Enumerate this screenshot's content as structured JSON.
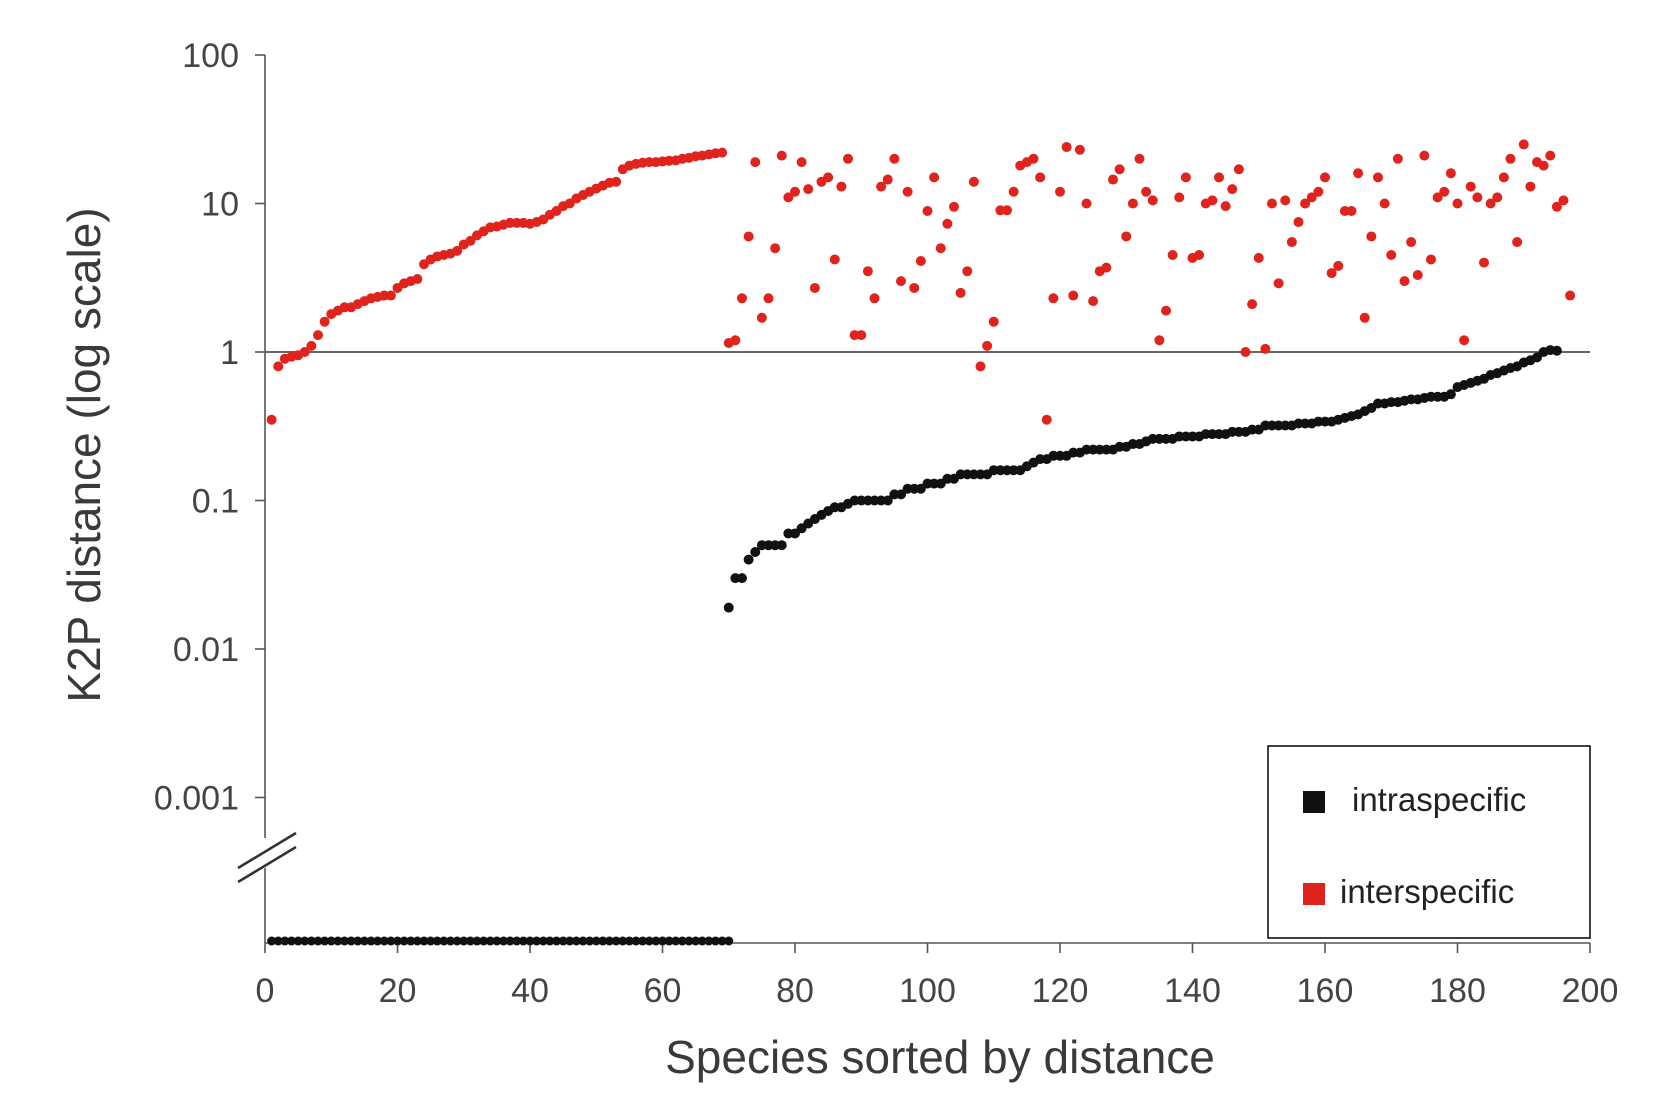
{
  "chart_data": {
    "type": "scatter",
    "title": "",
    "xlabel": "Species sorted by distance",
    "ylabel": "K2P distance (log scale)",
    "xlim": [
      0,
      200
    ],
    "ylim": [
      0.001,
      100
    ],
    "y_scale": "log",
    "y_axis_break": true,
    "x_ticks": [
      "0",
      "20",
      "40",
      "60",
      "80",
      "100",
      "120",
      "140",
      "160",
      "180",
      "200"
    ],
    "y_ticks": [
      "100",
      "10",
      "1",
      "0.1",
      "0.01",
      "0.001"
    ],
    "reference_line_y": 1,
    "grid": false,
    "legend_position": "bottom-right",
    "series": [
      {
        "name": "intraspecific",
        "color": "#111111",
        "zero_points_x_range": [
          1,
          70
        ],
        "points": [
          [
            70,
            0.019
          ],
          [
            71,
            0.03
          ],
          [
            72,
            0.03
          ],
          [
            73,
            0.04
          ],
          [
            74,
            0.045
          ],
          [
            75,
            0.05
          ],
          [
            76,
            0.05
          ],
          [
            77,
            0.05
          ],
          [
            78,
            0.05
          ],
          [
            79,
            0.06
          ],
          [
            80,
            0.06
          ],
          [
            81,
            0.065
          ],
          [
            82,
            0.07
          ],
          [
            83,
            0.075
          ],
          [
            84,
            0.08
          ],
          [
            85,
            0.085
          ],
          [
            86,
            0.09
          ],
          [
            87,
            0.09
          ],
          [
            88,
            0.095
          ],
          [
            89,
            0.1
          ],
          [
            90,
            0.1
          ],
          [
            91,
            0.1
          ],
          [
            92,
            0.1
          ],
          [
            93,
            0.1
          ],
          [
            94,
            0.1
          ],
          [
            95,
            0.11
          ],
          [
            96,
            0.11
          ],
          [
            97,
            0.12
          ],
          [
            98,
            0.12
          ],
          [
            99,
            0.12
          ],
          [
            100,
            0.13
          ],
          [
            101,
            0.13
          ],
          [
            102,
            0.13
          ],
          [
            103,
            0.14
          ],
          [
            104,
            0.14
          ],
          [
            105,
            0.15
          ],
          [
            106,
            0.15
          ],
          [
            107,
            0.15
          ],
          [
            108,
            0.15
          ],
          [
            109,
            0.15
          ],
          [
            110,
            0.16
          ],
          [
            111,
            0.16
          ],
          [
            112,
            0.16
          ],
          [
            113,
            0.16
          ],
          [
            114,
            0.16
          ],
          [
            115,
            0.17
          ],
          [
            116,
            0.18
          ],
          [
            117,
            0.19
          ],
          [
            118,
            0.19
          ],
          [
            119,
            0.2
          ],
          [
            120,
            0.2
          ],
          [
            121,
            0.2
          ],
          [
            122,
            0.21
          ],
          [
            123,
            0.21
          ],
          [
            124,
            0.22
          ],
          [
            125,
            0.22
          ],
          [
            126,
            0.22
          ],
          [
            127,
            0.22
          ],
          [
            128,
            0.22
          ],
          [
            129,
            0.23
          ],
          [
            130,
            0.23
          ],
          [
            131,
            0.24
          ],
          [
            132,
            0.24
          ],
          [
            133,
            0.25
          ],
          [
            134,
            0.26
          ],
          [
            135,
            0.26
          ],
          [
            136,
            0.26
          ],
          [
            137,
            0.26
          ],
          [
            138,
            0.27
          ],
          [
            139,
            0.27
          ],
          [
            140,
            0.27
          ],
          [
            141,
            0.27
          ],
          [
            142,
            0.28
          ],
          [
            143,
            0.28
          ],
          [
            144,
            0.28
          ],
          [
            145,
            0.28
          ],
          [
            146,
            0.29
          ],
          [
            147,
            0.29
          ],
          [
            148,
            0.29
          ],
          [
            149,
            0.3
          ],
          [
            150,
            0.3
          ],
          [
            151,
            0.32
          ],
          [
            152,
            0.32
          ],
          [
            153,
            0.32
          ],
          [
            154,
            0.32
          ],
          [
            155,
            0.32
          ],
          [
            156,
            0.33
          ],
          [
            157,
            0.33
          ],
          [
            158,
            0.33
          ],
          [
            159,
            0.34
          ],
          [
            160,
            0.34
          ],
          [
            161,
            0.34
          ],
          [
            162,
            0.35
          ],
          [
            163,
            0.36
          ],
          [
            164,
            0.37
          ],
          [
            165,
            0.38
          ],
          [
            166,
            0.4
          ],
          [
            167,
            0.42
          ],
          [
            168,
            0.45
          ],
          [
            169,
            0.45
          ],
          [
            170,
            0.46
          ],
          [
            171,
            0.46
          ],
          [
            172,
            0.47
          ],
          [
            173,
            0.48
          ],
          [
            174,
            0.48
          ],
          [
            175,
            0.49
          ],
          [
            176,
            0.5
          ],
          [
            177,
            0.5
          ],
          [
            178,
            0.5
          ],
          [
            179,
            0.52
          ],
          [
            180,
            0.58
          ],
          [
            181,
            0.6
          ],
          [
            182,
            0.62
          ],
          [
            183,
            0.64
          ],
          [
            184,
            0.66
          ],
          [
            185,
            0.7
          ],
          [
            186,
            0.72
          ],
          [
            187,
            0.75
          ],
          [
            188,
            0.78
          ],
          [
            189,
            0.8
          ],
          [
            190,
            0.85
          ],
          [
            191,
            0.88
          ],
          [
            192,
            0.92
          ],
          [
            193,
            1.0
          ],
          [
            194,
            1.03
          ],
          [
            195,
            1.02
          ]
        ]
      },
      {
        "name": "interspecific",
        "color": "#e0231c",
        "points": [
          [
            1,
            0.35
          ],
          [
            2,
            0.8
          ],
          [
            3,
            0.9
          ],
          [
            4,
            0.93
          ],
          [
            5,
            0.95
          ],
          [
            6,
            1.0
          ],
          [
            7,
            1.1
          ],
          [
            8,
            1.3
          ],
          [
            9,
            1.6
          ],
          [
            10,
            1.8
          ],
          [
            11,
            1.9
          ],
          [
            12,
            2.0
          ],
          [
            13,
            2.0
          ],
          [
            14,
            2.1
          ],
          [
            15,
            2.2
          ],
          [
            16,
            2.3
          ],
          [
            17,
            2.35
          ],
          [
            18,
            2.4
          ],
          [
            19,
            2.4
          ],
          [
            20,
            2.7
          ],
          [
            21,
            2.9
          ],
          [
            22,
            3.0
          ],
          [
            23,
            3.1
          ],
          [
            24,
            3.9
          ],
          [
            25,
            4.2
          ],
          [
            26,
            4.4
          ],
          [
            27,
            4.5
          ],
          [
            28,
            4.6
          ],
          [
            29,
            4.8
          ],
          [
            30,
            5.3
          ],
          [
            31,
            5.6
          ],
          [
            32,
            6.1
          ],
          [
            33,
            6.5
          ],
          [
            34,
            6.9
          ],
          [
            35,
            7.0
          ],
          [
            36,
            7.2
          ],
          [
            37,
            7.4
          ],
          [
            38,
            7.4
          ],
          [
            39,
            7.4
          ],
          [
            40,
            7.3
          ],
          [
            41,
            7.5
          ],
          [
            42,
            7.8
          ],
          [
            43,
            8.4
          ],
          [
            44,
            8.9
          ],
          [
            45,
            9.6
          ],
          [
            46,
            10.0
          ],
          [
            47,
            10.8
          ],
          [
            48,
            11.4
          ],
          [
            49,
            12.0
          ],
          [
            50,
            12.6
          ],
          [
            51,
            13.2
          ],
          [
            52,
            13.8
          ],
          [
            53,
            14.0
          ],
          [
            54,
            17.0
          ],
          [
            55,
            18.0
          ],
          [
            56,
            18.5
          ],
          [
            57,
            18.8
          ],
          [
            58,
            19.0
          ],
          [
            59,
            19.0
          ],
          [
            60,
            19.2
          ],
          [
            61,
            19.4
          ],
          [
            62,
            19.5
          ],
          [
            63,
            20.0
          ],
          [
            64,
            20.3
          ],
          [
            65,
            20.8
          ],
          [
            66,
            21.0
          ],
          [
            67,
            21.4
          ],
          [
            68,
            21.8
          ],
          [
            69,
            22.0
          ],
          [
            70,
            1.15
          ],
          [
            71,
            1.2
          ],
          [
            72,
            2.3
          ],
          [
            73,
            6.0
          ],
          [
            74,
            19.0
          ],
          [
            75,
            1.7
          ],
          [
            76,
            2.3
          ],
          [
            77,
            5.0
          ],
          [
            78,
            21.0
          ],
          [
            79,
            11.0
          ],
          [
            80,
            12.0
          ],
          [
            81,
            19.0
          ],
          [
            82,
            12.5
          ],
          [
            83,
            2.7
          ],
          [
            84,
            14.0
          ],
          [
            85,
            15.0
          ],
          [
            86,
            4.2
          ],
          [
            87,
            13.0
          ],
          [
            88,
            20.0
          ],
          [
            89,
            1.3
          ],
          [
            90,
            1.3
          ],
          [
            91,
            3.5
          ],
          [
            92,
            2.3
          ],
          [
            93,
            13.0
          ],
          [
            94,
            14.5
          ],
          [
            95,
            20.0
          ],
          [
            96,
            3.0
          ],
          [
            97,
            12.0
          ],
          [
            98,
            2.7
          ],
          [
            99,
            4.1
          ],
          [
            100,
            8.9
          ],
          [
            101,
            15.0
          ],
          [
            102,
            5.0
          ],
          [
            103,
            7.3
          ],
          [
            104,
            9.5
          ],
          [
            105,
            2.5
          ],
          [
            106,
            3.5
          ],
          [
            107,
            14.0
          ],
          [
            108,
            0.8
          ],
          [
            109,
            1.1
          ],
          [
            110,
            1.6
          ],
          [
            111,
            9.0
          ],
          [
            112,
            9.0
          ],
          [
            113,
            12.0
          ],
          [
            114,
            18.0
          ],
          [
            115,
            19.0
          ],
          [
            116,
            20.0
          ],
          [
            117,
            15.0
          ],
          [
            118,
            0.35
          ],
          [
            119,
            2.3
          ],
          [
            120,
            12.0
          ],
          [
            121,
            24.0
          ],
          [
            122,
            2.4
          ],
          [
            123,
            23.0
          ],
          [
            124,
            10.0
          ],
          [
            125,
            2.2
          ],
          [
            126,
            3.5
          ],
          [
            127,
            3.7
          ],
          [
            128,
            14.5
          ],
          [
            129,
            17.0
          ],
          [
            130,
            6.0
          ],
          [
            131,
            10.0
          ],
          [
            132,
            20.0
          ],
          [
            133,
            12.0
          ],
          [
            134,
            10.5
          ],
          [
            135,
            1.2
          ],
          [
            136,
            1.9
          ],
          [
            137,
            4.5
          ],
          [
            138,
            11.0
          ],
          [
            139,
            15.0
          ],
          [
            140,
            4.3
          ],
          [
            141,
            4.5
          ],
          [
            142,
            10.0
          ],
          [
            143,
            10.5
          ],
          [
            144,
            15.0
          ],
          [
            145,
            9.6
          ],
          [
            146,
            12.5
          ],
          [
            147,
            17.0
          ],
          [
            148,
            1.0
          ],
          [
            149,
            2.1
          ],
          [
            150,
            4.3
          ],
          [
            151,
            1.05
          ],
          [
            152,
            10.0
          ],
          [
            153,
            2.9
          ],
          [
            154,
            10.5
          ],
          [
            155,
            5.5
          ],
          [
            156,
            7.5
          ],
          [
            157,
            10.0
          ],
          [
            158,
            11.0
          ],
          [
            159,
            12.0
          ],
          [
            160,
            15.0
          ],
          [
            161,
            3.4
          ],
          [
            162,
            3.8
          ],
          [
            163,
            8.9
          ],
          [
            164,
            8.9
          ],
          [
            165,
            16.0
          ],
          [
            166,
            1.7
          ],
          [
            167,
            6.0
          ],
          [
            168,
            15.0
          ],
          [
            169,
            10.0
          ],
          [
            170,
            4.5
          ],
          [
            171,
            20.0
          ],
          [
            172,
            3.0
          ],
          [
            173,
            5.5
          ],
          [
            174,
            3.3
          ],
          [
            175,
            21.0
          ],
          [
            176,
            4.2
          ],
          [
            177,
            11.0
          ],
          [
            178,
            12.0
          ],
          [
            179,
            16.0
          ],
          [
            180,
            10.0
          ],
          [
            181,
            1.2
          ],
          [
            182,
            13.0
          ],
          [
            183,
            11.0
          ],
          [
            184,
            4.0
          ],
          [
            185,
            10.0
          ],
          [
            186,
            11.0
          ],
          [
            187,
            15.0
          ],
          [
            188,
            20.0
          ],
          [
            189,
            5.5
          ],
          [
            190,
            25.0
          ],
          [
            191,
            13.0
          ],
          [
            192,
            19.0
          ],
          [
            193,
            18.0
          ],
          [
            194,
            21.0
          ],
          [
            195,
            9.5
          ],
          [
            196,
            10.5
          ],
          [
            197,
            2.4
          ]
        ]
      }
    ]
  }
}
